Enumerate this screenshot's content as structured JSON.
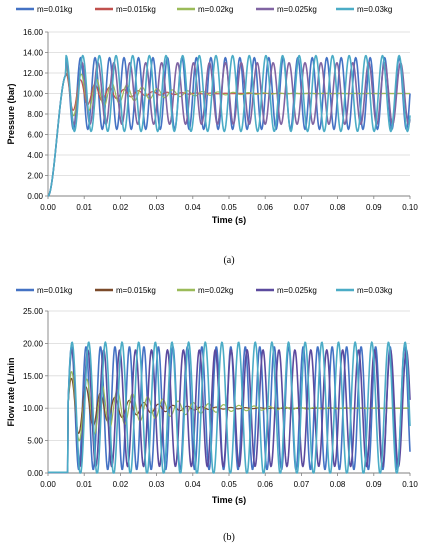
{
  "chart_data": [
    {
      "type": "line",
      "caption": "(a)",
      "xlabel": "Time (s)",
      "ylabel": "Pressure (bar)",
      "xlim": [
        0,
        0.1
      ],
      "ylim": [
        0,
        16
      ],
      "xticks": [
        "0.00",
        "0.01",
        "0.02",
        "0.03",
        "0.04",
        "0.05",
        "0.06",
        "0.07",
        "0.08",
        "0.09",
        "0.10"
      ],
      "yticks": [
        "0.00",
        "2.00",
        "4.00",
        "6.00",
        "8.00",
        "10.00",
        "12.00",
        "14.00",
        "16.00"
      ],
      "grid": "horizontal",
      "legend": "top",
      "series": [
        {
          "name": "m=0.01kg",
          "color": "#4472C4",
          "rise_end": 0.005,
          "steady": 10.0,
          "amplitude": 3.5,
          "period": 0.004,
          "decay": 0
        },
        {
          "name": "m=0.015kg",
          "color": "#C0504D",
          "rise_end": 0.005,
          "steady": 10.0,
          "amplitude": 2.0,
          "period": 0.004,
          "decay": 0.01
        },
        {
          "name": "m=0.02kg",
          "color": "#9BBB59",
          "rise_end": 0.005,
          "steady": 10.0,
          "amplitude": 2.5,
          "period": 0.0042,
          "decay": 0.015
        },
        {
          "name": "m=0.025kg",
          "color": "#8064A2",
          "rise_end": 0.005,
          "steady": 10.0,
          "amplitude": 3.0,
          "period": 0.0044,
          "decay": 0
        },
        {
          "name": "m=0.03kg",
          "color": "#4BACC6",
          "rise_end": 0.005,
          "steady": 10.0,
          "amplitude": 3.7,
          "period": 0.0046,
          "decay": 0
        }
      ]
    },
    {
      "type": "line",
      "caption": "(b)",
      "xlabel": "Time (s)",
      "ylabel": "Flow rate (L/min",
      "xlim": [
        0,
        0.1
      ],
      "ylim": [
        0,
        25
      ],
      "xticks": [
        "0.00",
        "0.01",
        "0.02",
        "0.03",
        "0.04",
        "0.05",
        "0.06",
        "0.07",
        "0.08",
        "0.09",
        "0.10"
      ],
      "yticks": [
        "0.00",
        "5.00",
        "10.00",
        "15.00",
        "20.00",
        "25.00"
      ],
      "grid": "horizontal",
      "legend": "top",
      "series": [
        {
          "name": "m=0.01kg",
          "color": "#4472C4",
          "start": 0.0055,
          "steady": 10.0,
          "amplitude": 9.5,
          "period": 0.004,
          "decay": 0
        },
        {
          "name": "m=0.015kg",
          "color": "#7B4A2A",
          "start": 0.0055,
          "steady": 10.0,
          "amplitude": 5.0,
          "period": 0.004,
          "decay": 0.012
        },
        {
          "name": "m=0.02kg",
          "color": "#9BBB59",
          "start": 0.0055,
          "steady": 10.0,
          "amplitude": 6.0,
          "period": 0.0042,
          "decay": 0.018
        },
        {
          "name": "m=0.025kg",
          "color": "#5B4A9E",
          "start": 0.0055,
          "steady": 10.0,
          "amplitude": 9.0,
          "period": 0.0044,
          "decay": 0
        },
        {
          "name": "m=0.03kg",
          "color": "#4BACC6",
          "start": 0.0055,
          "steady": 10.0,
          "amplitude": 10.2,
          "period": 0.0046,
          "decay": 0
        }
      ]
    }
  ]
}
